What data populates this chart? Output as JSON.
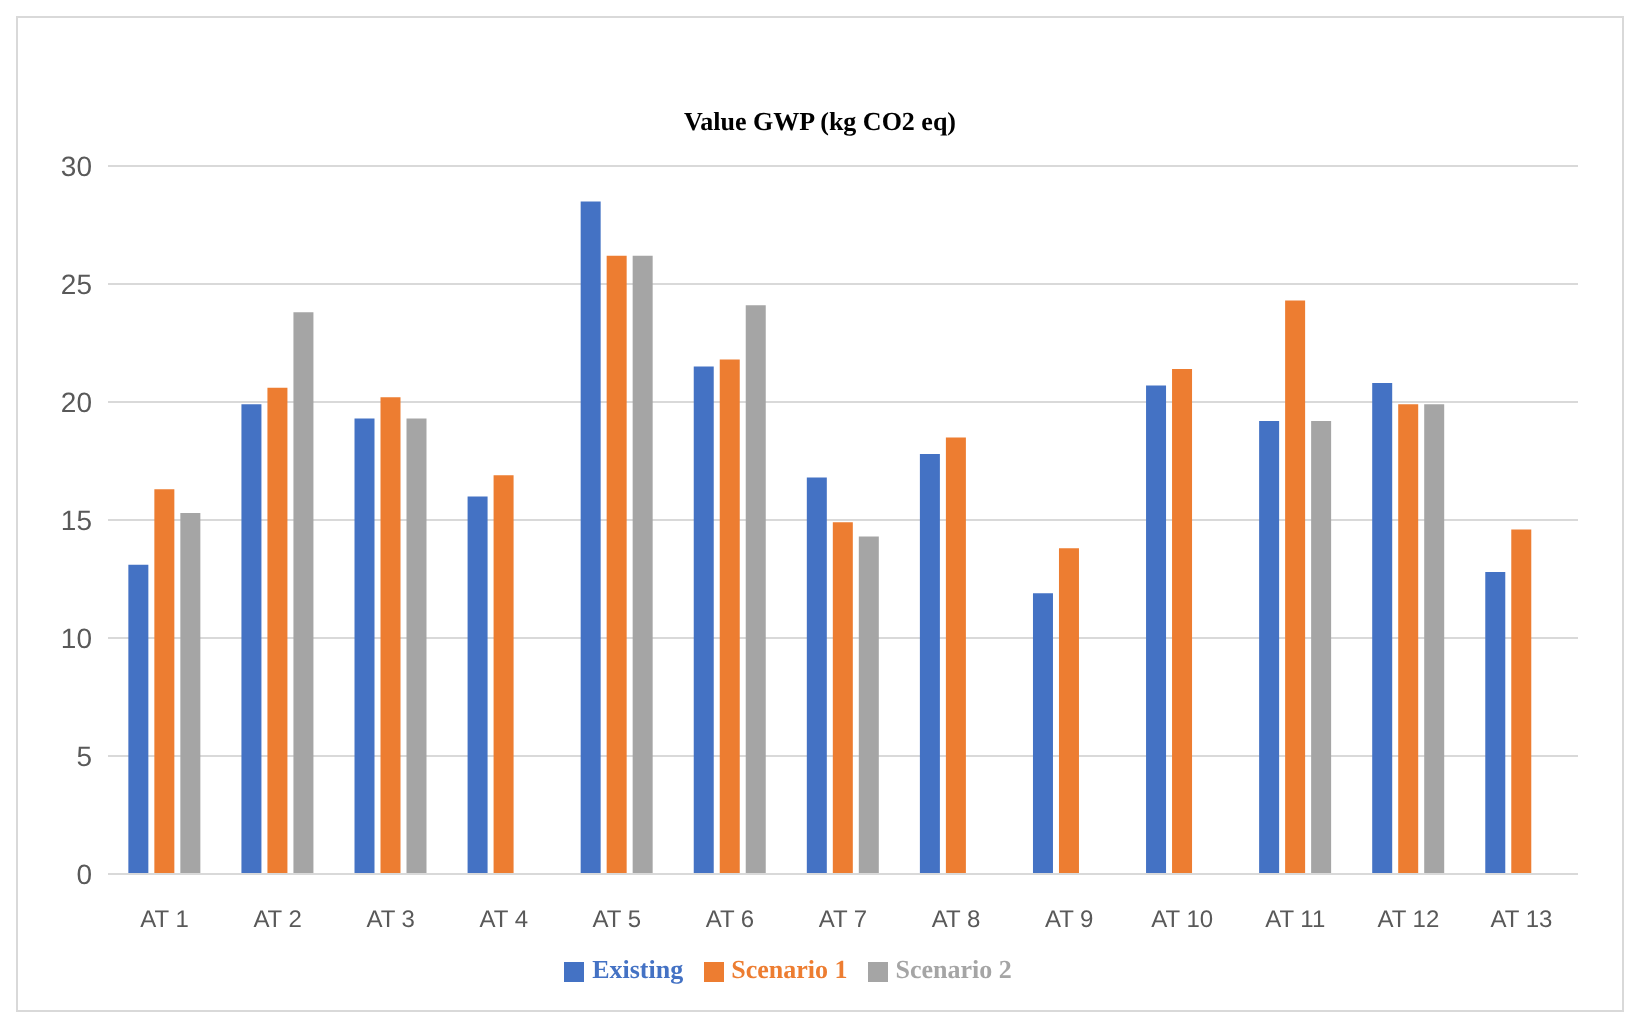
{
  "chart_data": {
    "type": "bar",
    "title": "Value GWP (kg CO2 eq)",
    "categories": [
      "AT 1",
      "AT 2",
      "AT 3",
      "AT 4",
      "AT 5",
      "AT 6",
      "AT 7",
      "AT 8",
      "AT 9",
      "AT 10",
      "AT 11",
      "AT 12",
      "AT 13"
    ],
    "series": [
      {
        "name": "Existing",
        "color": "#4472c4",
        "values": [
          13.1,
          19.9,
          19.3,
          16.0,
          28.5,
          21.5,
          16.8,
          17.8,
          11.9,
          20.7,
          19.2,
          20.8,
          12.8
        ]
      },
      {
        "name": "Scenario 1",
        "color": "#ed7d31",
        "values": [
          16.3,
          20.6,
          20.2,
          16.9,
          26.2,
          21.8,
          14.9,
          18.5,
          13.8,
          21.4,
          24.3,
          19.9,
          14.6
        ]
      },
      {
        "name": "Scenario 2",
        "color": "#a5a5a5",
        "values": [
          15.3,
          23.8,
          19.3,
          null,
          26.2,
          24.1,
          14.3,
          null,
          null,
          null,
          19.2,
          19.9,
          null
        ]
      }
    ],
    "ylim": [
      0,
      30
    ],
    "yticks": [
      0,
      5,
      10,
      15,
      20,
      25,
      30
    ],
    "grid": "y",
    "legend": "bottom"
  }
}
